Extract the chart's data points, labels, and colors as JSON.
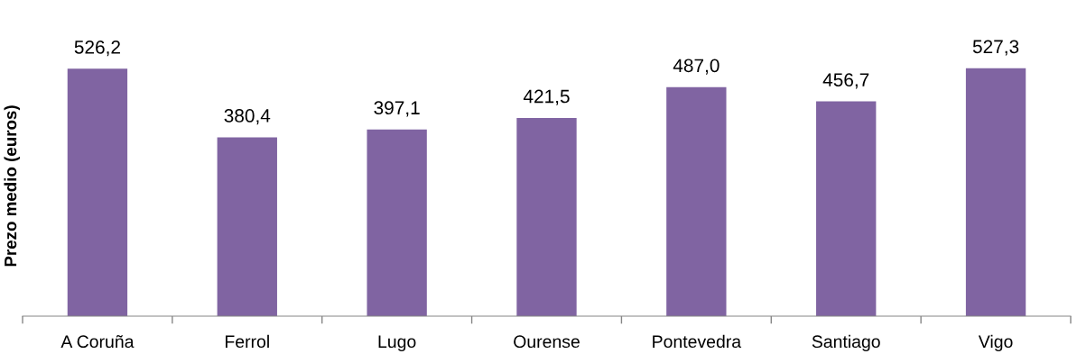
{
  "chart_data": {
    "type": "bar",
    "ylabel": "Prezo medio (euros)",
    "categories": [
      "A Coruña",
      "Ferrol",
      "Lugo",
      "Ourense",
      "Pontevedra",
      "Santiago",
      "Vigo"
    ],
    "values": [
      526.2,
      380.4,
      397.1,
      421.5,
      487.0,
      456.7,
      527.3
    ],
    "value_labels": [
      "526,2",
      "380,4",
      "397,1",
      "421,5",
      "487,0",
      "456,7",
      "527,3"
    ],
    "color": "#8064a2",
    "tick_labels": "x",
    "grid": false
  }
}
